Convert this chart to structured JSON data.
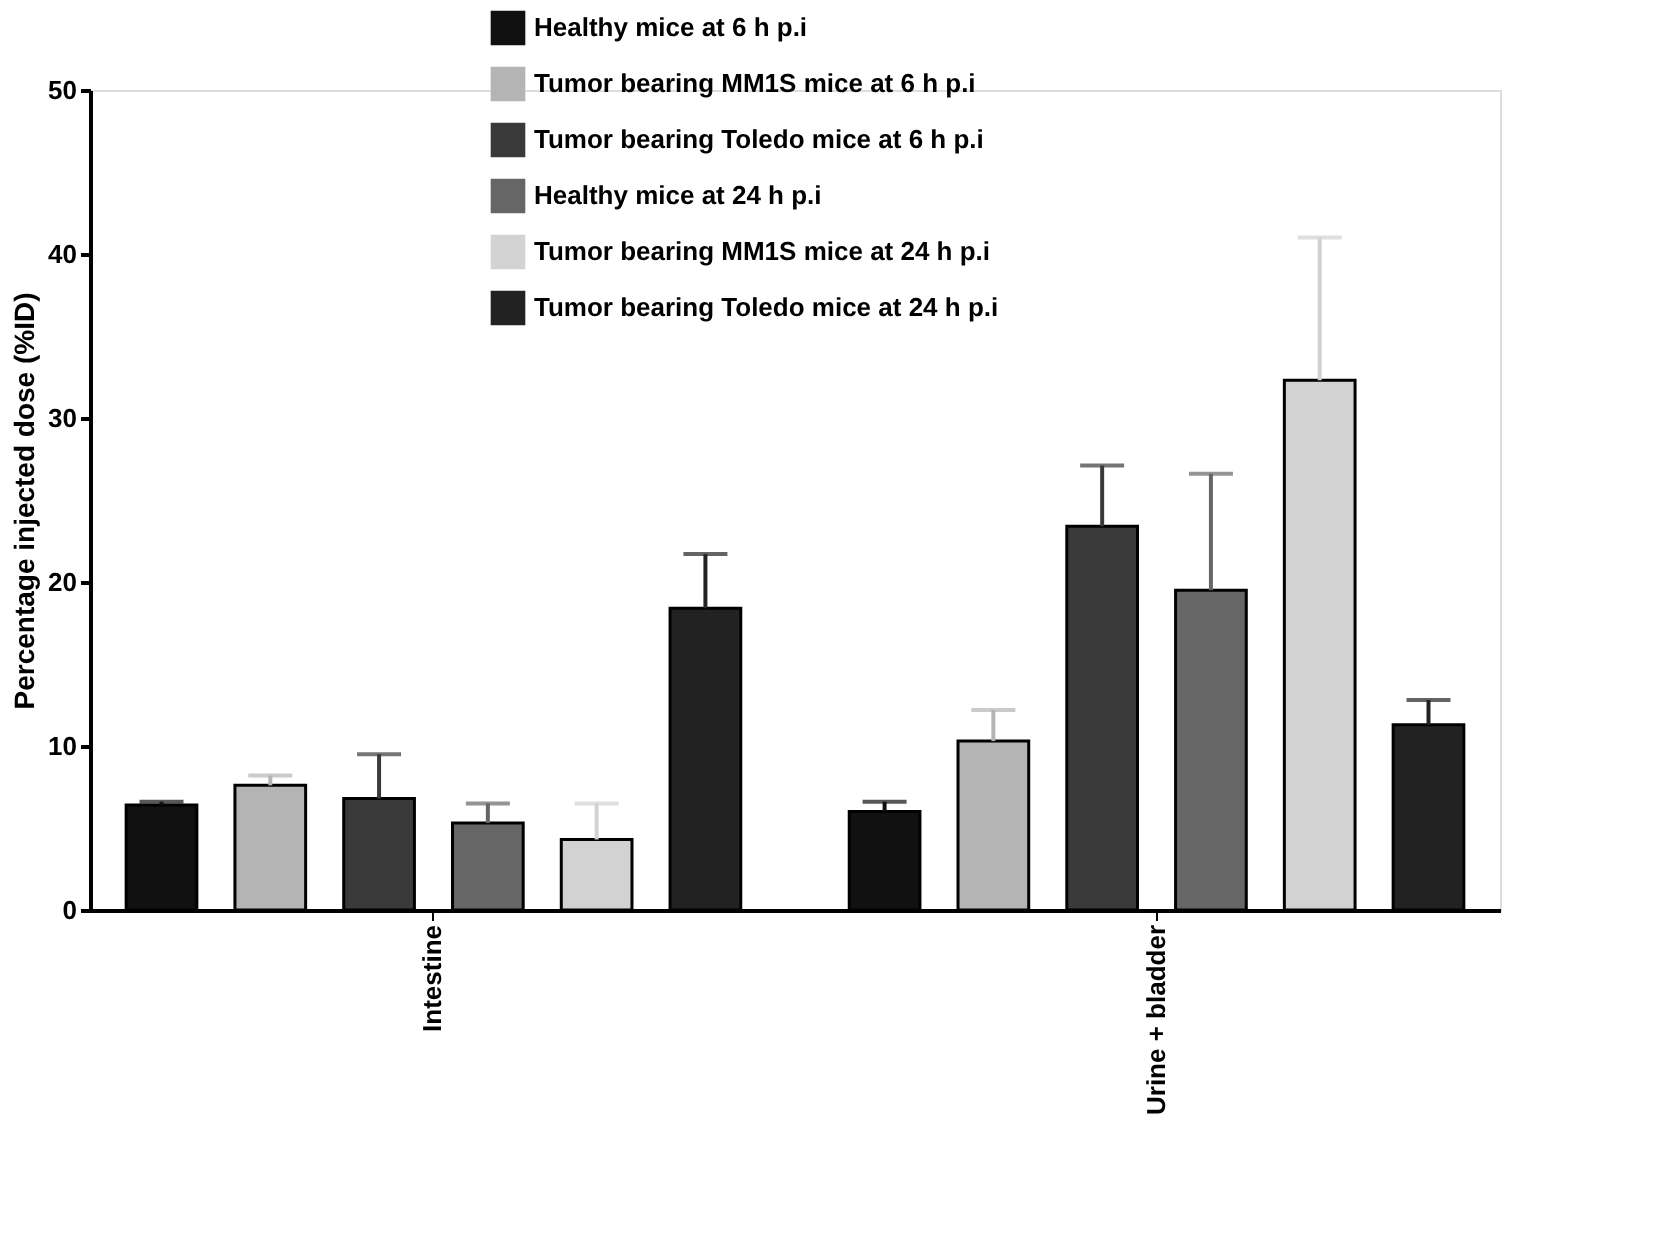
{
  "chart_data": {
    "type": "bar",
    "ylabel": "Percentage injected dose (%ID)",
    "categories": [
      "Intestine",
      "Urine + bladder"
    ],
    "series": [
      {
        "name": "Healthy mice at 6 h p.i",
        "color": "#111111",
        "values": [
          6.4,
          6.0
        ],
        "errors": [
          [
            6.4,
            6.6
          ],
          [
            6.0,
            6.6
          ]
        ]
      },
      {
        "name": "Tumor bearing MM1S mice at 6 h p.i",
        "color": "#b4b4b4",
        "values": [
          7.6,
          10.3
        ],
        "errors": [
          [
            7.6,
            8.2
          ],
          [
            10.3,
            12.2
          ]
        ]
      },
      {
        "name": "Tumor bearing Toledo mice at 6 h p.i",
        "color": "#3a3a3a",
        "values": [
          6.8,
          23.4
        ],
        "errors": [
          [
            6.8,
            9.5
          ],
          [
            23.4,
            27.1
          ]
        ]
      },
      {
        "name": "Healthy mice at 24 h p.i",
        "color": "#666666",
        "values": [
          5.3,
          19.5
        ],
        "errors": [
          [
            5.3,
            6.5
          ],
          [
            19.5,
            26.6
          ]
        ]
      },
      {
        "name": "Tumor bearing MM1S mice at 24 h p.i",
        "color": "#d2d2d2",
        "values": [
          4.3,
          32.3
        ],
        "errors": [
          [
            4.3,
            6.5
          ],
          [
            32.3,
            41.0
          ]
        ]
      },
      {
        "name": "Tumor bearing Toledo mice at 24 h p.i",
        "color": "#222222",
        "values": [
          18.4,
          11.3
        ],
        "errors": [
          [
            18.4,
            21.7
          ],
          [
            11.3,
            12.8
          ]
        ]
      }
    ],
    "ylim": [
      0,
      50
    ],
    "yticks": [
      0,
      10,
      20,
      30,
      40,
      50
    ],
    "grid": false,
    "legend": "top"
  }
}
